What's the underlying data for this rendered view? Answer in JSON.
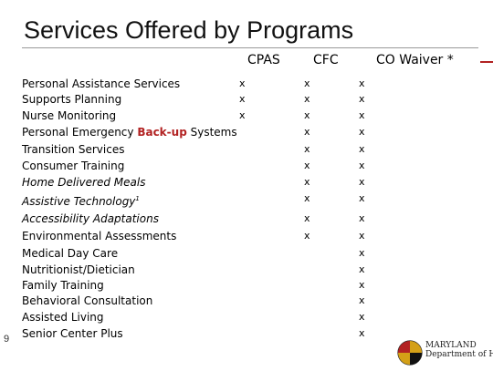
{
  "title": "Services Offered by Programs",
  "columns": [
    "CPAS",
    "CFC",
    "CO Waiver *"
  ],
  "services": [
    {
      "name": "Personal Assistance Services",
      "italic": false,
      "cpas": "x",
      "cfc": "x",
      "co": "x"
    },
    {
      "name": "Supports Planning",
      "italic": false,
      "cpas": "x",
      "cfc": "x",
      "co": "x"
    },
    {
      "name": "Nurse Monitoring",
      "italic": false,
      "cpas": "x",
      "cfc": "x",
      "co": "x"
    },
    {
      "name_before": "Personal Emergency ",
      "name_highlight": "Back-up",
      "name_after": " Systems",
      "italic": false,
      "cpas": "",
      "cfc": "x",
      "co": "x"
    },
    {
      "name": "Transition Services",
      "italic": false,
      "cpas": "",
      "cfc": "x",
      "co": "x"
    },
    {
      "name": "Consumer Training",
      "italic": false,
      "cpas": "",
      "cfc": "x",
      "co": "x"
    },
    {
      "name": "Home Delivered Meals",
      "italic": true,
      "cpas": "",
      "cfc": "x",
      "co": "x"
    },
    {
      "name": "Assistive Technology",
      "superscript": "1",
      "italic": true,
      "cpas": "",
      "cfc": "x",
      "co": "x"
    },
    {
      "name": "Accessibility Adaptations",
      "italic": true,
      "cpas": "",
      "cfc": "x",
      "co": "x"
    },
    {
      "name": "Environmental Assessments",
      "italic": false,
      "cpas": "",
      "cfc": "x",
      "co": "x"
    },
    {
      "name": "Medical Day Care",
      "italic": false,
      "cpas": "",
      "cfc": "",
      "co": "x"
    },
    {
      "name": "Nutritionist/Dietician",
      "italic": false,
      "cpas": "",
      "cfc": "",
      "co": "x"
    },
    {
      "name": "Family Training",
      "italic": false,
      "cpas": "",
      "cfc": "",
      "co": "x"
    },
    {
      "name": "Behavioral Consultation",
      "italic": false,
      "cpas": "",
      "cfc": "",
      "co": "x"
    },
    {
      "name": "Assisted Living",
      "italic": false,
      "cpas": "",
      "cfc": "",
      "co": "x"
    },
    {
      "name": "Senior Center Plus",
      "italic": false,
      "cpas": "",
      "cfc": "",
      "co": "x"
    }
  ],
  "page_number": "9",
  "logo": {
    "line1": "MARYLAND",
    "line2": "Department of Health"
  },
  "colors": {
    "highlight": "#b22222",
    "rule": "#9a9a9a"
  }
}
